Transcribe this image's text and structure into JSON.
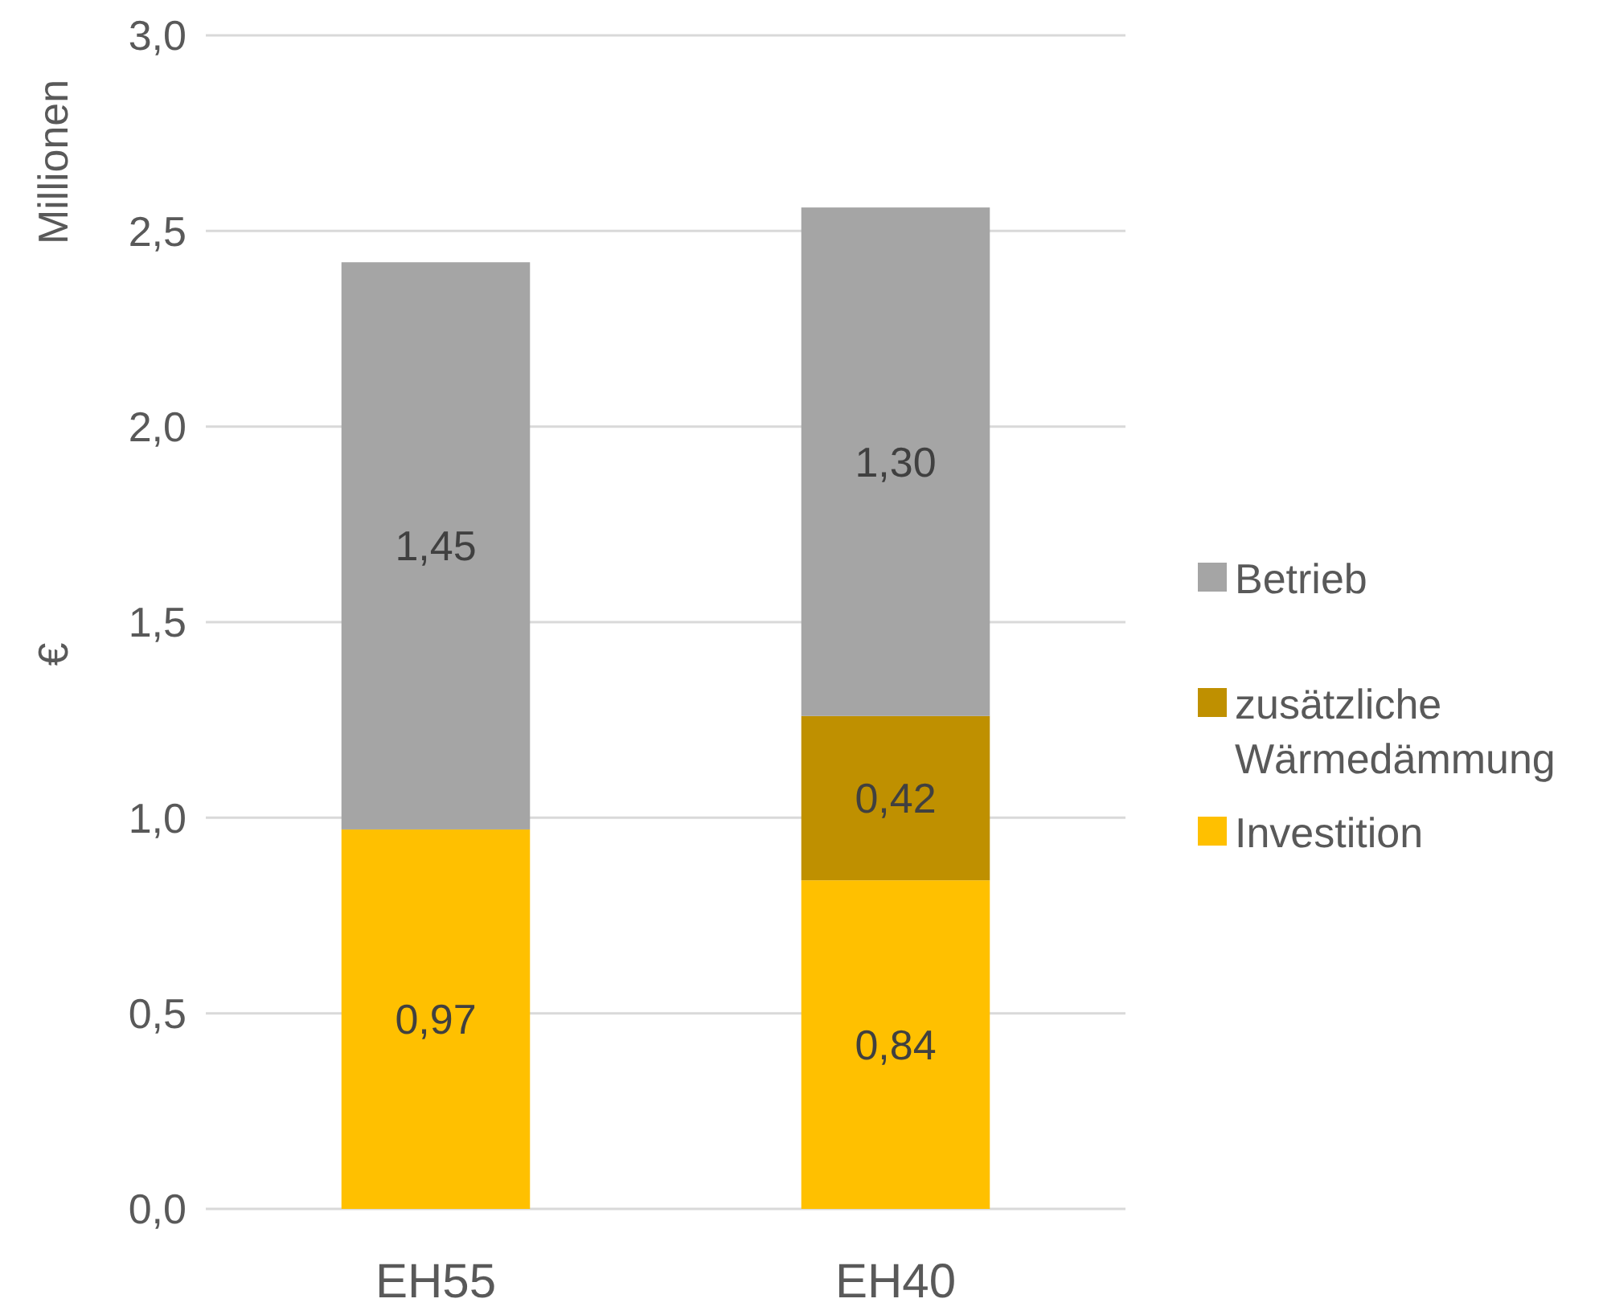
{
  "chart_data": {
    "type": "bar",
    "stacked": true,
    "ylabel": "€",
    "annotations": [
      "Millionen"
    ],
    "categories": [
      "EH55",
      "EH40"
    ],
    "series": [
      {
        "name": "Investition",
        "color": "#ffc000",
        "values": [
          0.97,
          0.84
        ],
        "value_labels": [
          "0,97",
          "0,84"
        ]
      },
      {
        "name": "zusätzliche Wärmedämmung",
        "color": "#bf9000",
        "values": [
          null,
          0.42
        ],
        "value_labels": [
          null,
          "0,42"
        ]
      },
      {
        "name": "Betrieb",
        "color": "#a5a5a5",
        "values": [
          1.45,
          1.3
        ],
        "value_labels": [
          "1,45",
          "1,30"
        ]
      }
    ],
    "ylim": [
      0,
      3
    ],
    "yticks": [
      {
        "value": 0,
        "label": "0,0"
      },
      {
        "value": 0.5,
        "label": "0,5"
      },
      {
        "value": 1,
        "label": "1,0"
      },
      {
        "value": 1.5,
        "label": "1,5"
      },
      {
        "value": 2,
        "label": "2,0"
      },
      {
        "value": 2.5,
        "label": "2,5"
      },
      {
        "value": 3,
        "label": "3,0"
      }
    ],
    "grid": "y",
    "legend": "right"
  }
}
